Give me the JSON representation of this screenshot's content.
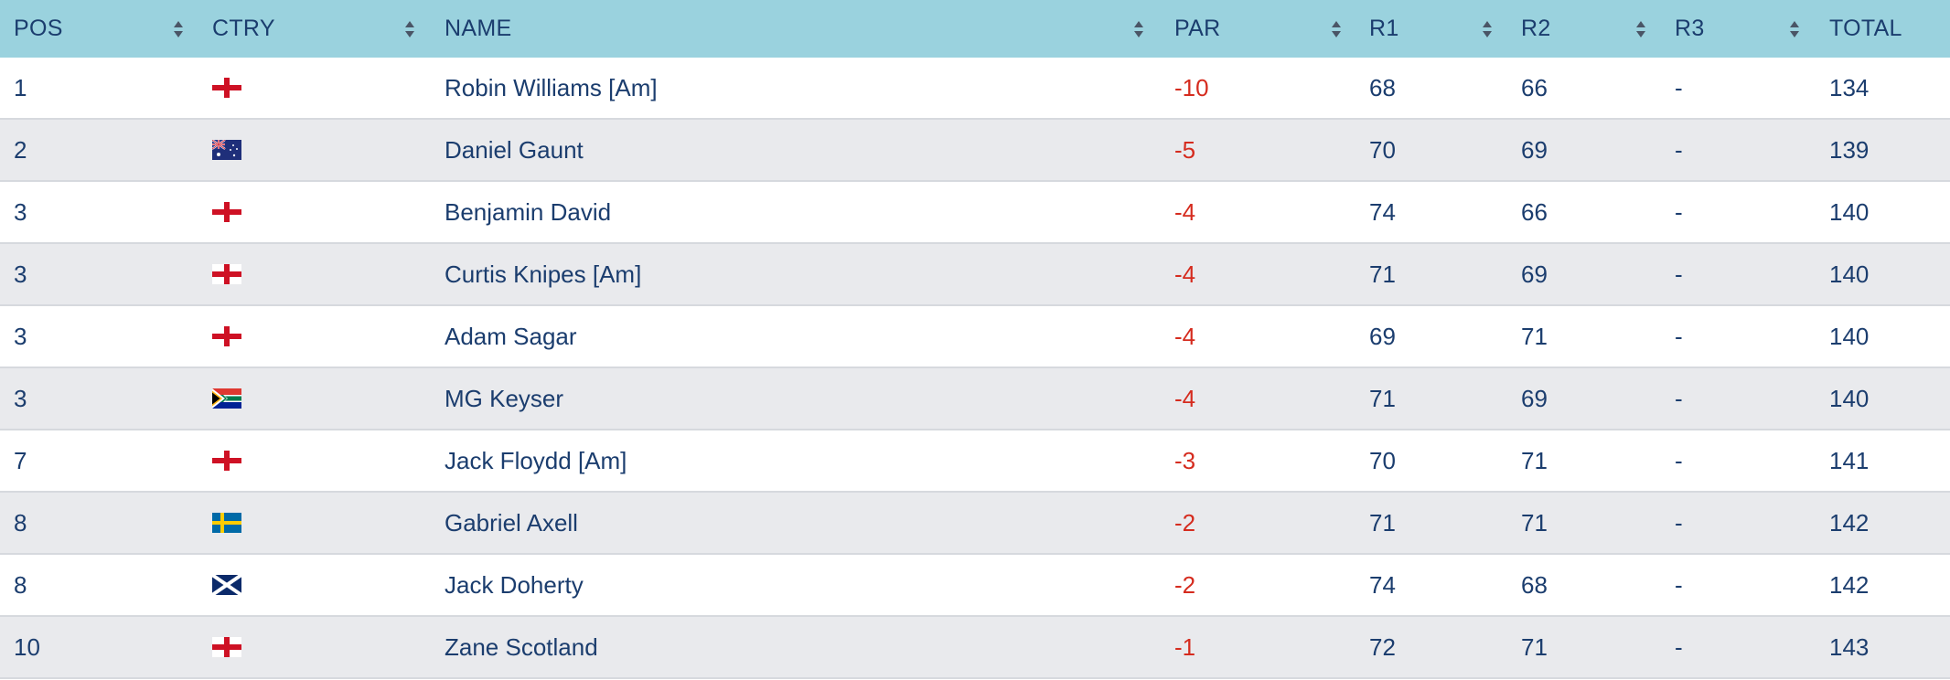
{
  "header": {
    "pos": "POS",
    "ctry": "CTRY",
    "name": "NAME",
    "par": "PAR",
    "r1": "R1",
    "r2": "R2",
    "r3": "R3",
    "total": "TOTAL"
  },
  "colors": {
    "header_bg": "#9ad2de",
    "text": "#1b3d6e",
    "under_par": "#d52b1e",
    "row_alt": "#e9eaed"
  },
  "rows": [
    {
      "pos": "1",
      "ctry": "england-flag-icon",
      "name": "Robin Williams [Am]",
      "par": "-10",
      "r1": "68",
      "r2": "66",
      "r3": "-",
      "total": "134"
    },
    {
      "pos": "2",
      "ctry": "australia-flag-icon",
      "name": "Daniel Gaunt",
      "par": "-5",
      "r1": "70",
      "r2": "69",
      "r3": "-",
      "total": "139"
    },
    {
      "pos": "3",
      "ctry": "england-flag-icon",
      "name": "Benjamin David",
      "par": "-4",
      "r1": "74",
      "r2": "66",
      "r3": "-",
      "total": "140"
    },
    {
      "pos": "3",
      "ctry": "england-flag-icon",
      "name": "Curtis Knipes [Am]",
      "par": "-4",
      "r1": "71",
      "r2": "69",
      "r3": "-",
      "total": "140"
    },
    {
      "pos": "3",
      "ctry": "england-flag-icon",
      "name": "Adam Sagar",
      "par": "-4",
      "r1": "69",
      "r2": "71",
      "r3": "-",
      "total": "140"
    },
    {
      "pos": "3",
      "ctry": "south-africa-flag-icon",
      "name": "MG Keyser",
      "par": "-4",
      "r1": "71",
      "r2": "69",
      "r3": "-",
      "total": "140"
    },
    {
      "pos": "7",
      "ctry": "england-flag-icon",
      "name": "Jack Floydd [Am]",
      "par": "-3",
      "r1": "70",
      "r2": "71",
      "r3": "-",
      "total": "141"
    },
    {
      "pos": "8",
      "ctry": "sweden-flag-icon",
      "name": "Gabriel Axell",
      "par": "-2",
      "r1": "71",
      "r2": "71",
      "r3": "-",
      "total": "142"
    },
    {
      "pos": "8",
      "ctry": "scotland-flag-icon",
      "name": "Jack Doherty",
      "par": "-2",
      "r1": "74",
      "r2": "68",
      "r3": "-",
      "total": "142"
    },
    {
      "pos": "10",
      "ctry": "england-flag-icon",
      "name": "Zane Scotland",
      "par": "-1",
      "r1": "72",
      "r2": "71",
      "r3": "-",
      "total": "143"
    }
  ]
}
